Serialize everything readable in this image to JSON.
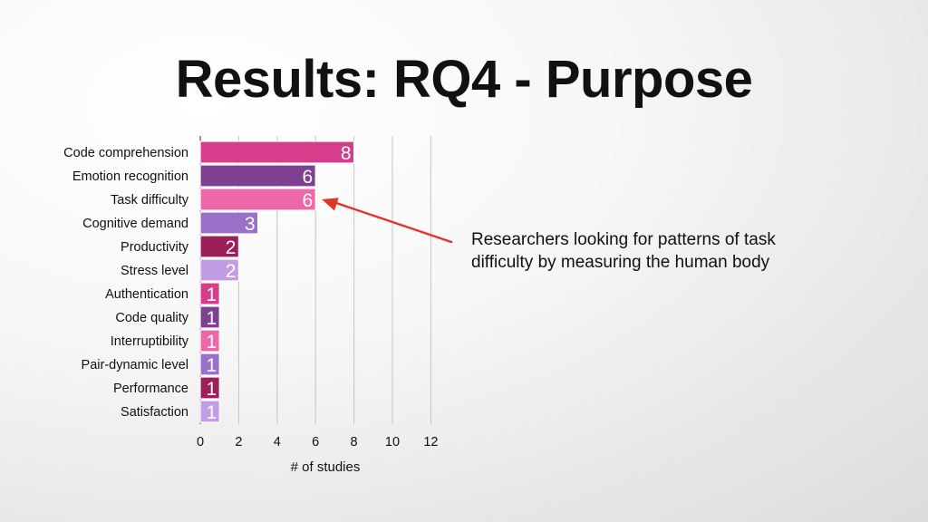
{
  "slide": {
    "title": "Results: RQ4 - Purpose",
    "callout": "Researchers looking for patterns of task difficulty by measuring the human body"
  },
  "chart_data": {
    "type": "bar",
    "orientation": "horizontal",
    "categories": [
      "Code comprehension",
      "Emotion recognition",
      "Task difficulty",
      "Cognitive demand",
      "Productivity",
      "Stress level",
      "Authentication",
      "Code quality",
      "Interruptibility",
      "Pair-dynamic level",
      "Performance",
      "Satisfaction"
    ],
    "values": [
      8,
      6,
      6,
      3,
      2,
      2,
      1,
      1,
      1,
      1,
      1,
      1
    ],
    "data_labels": [
      "8",
      "6",
      "6",
      "3",
      "2",
      "2",
      "1",
      "1",
      "1",
      "1",
      "1",
      "1"
    ],
    "colors": [
      "#d63d8a",
      "#7f3f93",
      "#ee67a8",
      "#9b70c8",
      "#9c1f5c",
      "#c19de3",
      "#d63d8a",
      "#7f3f93",
      "#ee67a8",
      "#9b70c8",
      "#9c1f5c",
      "#c19de3"
    ],
    "xlabel": "# of studies",
    "ylabel": "",
    "xlim": [
      0,
      12
    ],
    "xticks": [
      "0",
      "2",
      "4",
      "6",
      "8",
      "10",
      "12"
    ],
    "grid": true,
    "annotation_arrow_color": "#e0362a"
  }
}
